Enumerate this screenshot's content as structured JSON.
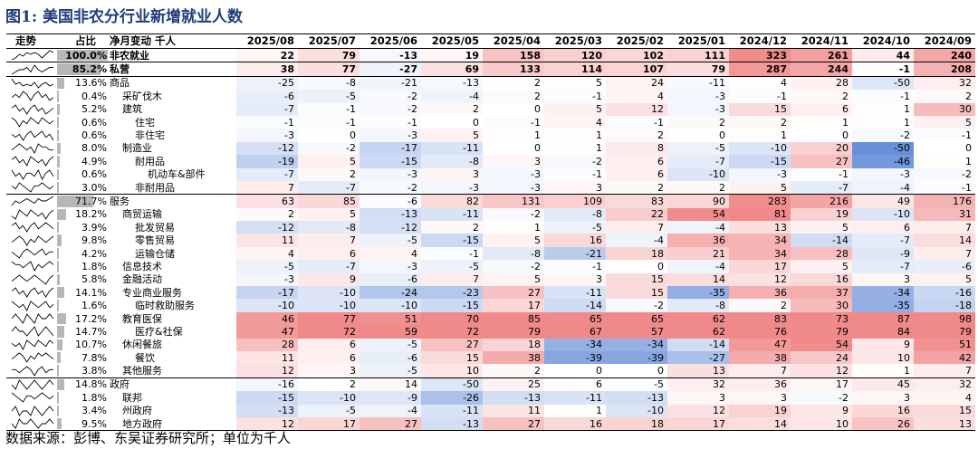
{
  "title": "图1: 美国非农分行业新增就业人数",
  "source": "数据来源：彭博、东吴证券研究所；单位为千人",
  "headers": {
    "trend": "走势",
    "share": "占比",
    "name": "净月变动 千人",
    "dates": [
      "2025/08",
      "2025/07",
      "2025/06",
      "2025/05",
      "2025/04",
      "2025/03",
      "2025/02",
      "2025/01",
      "2024/12",
      "2024/11",
      "2024/10",
      "2024/09"
    ]
  },
  "colors": {
    "pos_max": "#f08a8a",
    "neg_max": "#5b86d6",
    "neutral": "#ffffff",
    "share_bar": "#b7b7b7"
  },
  "rows": [
    {
      "name": "非农就业",
      "share": "100.0%",
      "share_value": 100.0,
      "level": 0,
      "values": [
        22,
        79,
        -13,
        19,
        158,
        120,
        102,
        111,
        323,
        261,
        44,
        240
      ],
      "trend": [
        15,
        14,
        12,
        13,
        11,
        12,
        11,
        12,
        14,
        12,
        10,
        11
      ]
    },
    {
      "name": "私营",
      "share": "85.2%",
      "share_value": 85.2,
      "level": 0,
      "values": [
        38,
        77,
        -27,
        69,
        133,
        114,
        107,
        79,
        287,
        244,
        -1,
        208
      ],
      "trend": [
        14,
        13,
        12,
        12,
        11,
        13,
        10,
        12,
        13,
        12,
        11,
        11
      ]
    },
    {
      "name": "商品",
      "share": "13.6%",
      "share_value": 13.6,
      "level": 1,
      "values": [
        -25,
        -8,
        -21,
        -13,
        2,
        5,
        24,
        -11,
        4,
        28,
        -50,
        32
      ],
      "trend": [
        9,
        12,
        11,
        13,
        12,
        13,
        11,
        14,
        12,
        11,
        13,
        12
      ]
    },
    {
      "name": "采矿伐木",
      "share": "0.4%",
      "share_value": 0.4,
      "level": 2,
      "values": [
        -6,
        -5,
        -2,
        -4,
        2,
        -1,
        4,
        -3,
        -1,
        2,
        -1,
        2
      ],
      "trend": [
        13,
        12,
        13,
        11,
        12,
        14,
        12,
        11,
        13,
        12,
        14,
        13
      ]
    },
    {
      "name": "建筑",
      "share": "5.2%",
      "share_value": 5.2,
      "level": 2,
      "values": [
        -7,
        -1,
        -2,
        2,
        0,
        5,
        12,
        -3,
        15,
        6,
        1,
        30
      ],
      "trend": [
        12,
        11,
        13,
        12,
        14,
        12,
        11,
        13,
        12,
        14,
        13,
        12
      ]
    },
    {
      "name": "住宅",
      "share": "0.6%",
      "share_value": 0.6,
      "level": 3,
      "values": [
        -1,
        -1,
        -1,
        0,
        -1,
        4,
        -1,
        2,
        2,
        1,
        1,
        5
      ],
      "trend": [
        11,
        12,
        14,
        12,
        13,
        11,
        12,
        13,
        11,
        12,
        13,
        12
      ]
    },
    {
      "name": "非住宅",
      "share": "0.6%",
      "share_value": 0.6,
      "level": 3,
      "values": [
        -3,
        0,
        -3,
        5,
        1,
        1,
        2,
        0,
        1,
        0,
        -2,
        -1
      ],
      "trend": [
        12,
        13,
        12,
        14,
        12,
        11,
        13,
        12,
        11,
        13,
        12,
        14
      ]
    },
    {
      "name": "制造业",
      "share": "8.0%",
      "share_value": 8.0,
      "level": 2,
      "values": [
        -12,
        -2,
        -17,
        -11,
        0,
        1,
        8,
        -5,
        -10,
        20,
        -50,
        0
      ],
      "trend": [
        13,
        12,
        11,
        12,
        13,
        12,
        14,
        11,
        12,
        12,
        13,
        13
      ]
    },
    {
      "name": "耐用品",
      "share": "4.9%",
      "share_value": 4.9,
      "level": 3,
      "values": [
        -19,
        5,
        -15,
        -8,
        3,
        -2,
        6,
        -7,
        -15,
        27,
        -46,
        1
      ],
      "trend": [
        12,
        11,
        13,
        12,
        14,
        11,
        12,
        13,
        12,
        14,
        12,
        11
      ]
    },
    {
      "name": "机动车&部件",
      "share": "0.6%",
      "share_value": 0.6,
      "level": 4,
      "values": [
        -7,
        2,
        -3,
        3,
        -3,
        -1,
        6,
        -10,
        -3,
        -1,
        -3,
        -2
      ],
      "trend": [
        11,
        13,
        12,
        14,
        12,
        12,
        13,
        11,
        14,
        12,
        11,
        13
      ]
    },
    {
      "name": "非耐用品",
      "share": "3.0%",
      "share_value": 3.0,
      "level": 3,
      "values": [
        7,
        -7,
        -2,
        -3,
        -3,
        3,
        2,
        2,
        5,
        -7,
        -4,
        -1
      ],
      "trend": [
        12,
        13,
        11,
        12,
        13,
        14,
        12,
        12,
        11,
        12,
        13,
        12
      ]
    },
    {
      "name": "服务",
      "share": "71.7%",
      "share_value": 71.7,
      "level": 1,
      "values": [
        63,
        85,
        -6,
        82,
        131,
        109,
        83,
        90,
        283,
        216,
        49,
        176
      ],
      "trend": [
        14,
        12,
        13,
        12,
        11,
        12,
        13,
        11,
        12,
        12,
        11,
        10
      ]
    },
    {
      "name": "商贸运输",
      "share": "18.2%",
      "share_value": 18.2,
      "level": 2,
      "values": [
        2,
        5,
        -13,
        -11,
        -2,
        -8,
        22,
        54,
        81,
        19,
        -10,
        31
      ],
      "trend": [
        13,
        14,
        11,
        12,
        13,
        11,
        12,
        13,
        12,
        14,
        12,
        11
      ]
    },
    {
      "name": "批发贸易",
      "share": "3.9%",
      "share_value": 3.9,
      "level": 3,
      "values": [
        -12,
        -8,
        -12,
        2,
        1,
        -5,
        7,
        -4,
        13,
        5,
        6,
        7
      ],
      "trend": [
        12,
        11,
        13,
        12,
        14,
        12,
        11,
        13,
        12,
        11,
        12,
        13
      ]
    },
    {
      "name": "零售贸易",
      "share": "9.8%",
      "share_value": 9.8,
      "level": 3,
      "values": [
        11,
        7,
        -5,
        -15,
        5,
        16,
        -4,
        36,
        34,
        -14,
        -7,
        14
      ],
      "trend": [
        13,
        12,
        11,
        12,
        14,
        12,
        13,
        11,
        12,
        13,
        12,
        11
      ]
    },
    {
      "name": "运输仓储",
      "share": "4.2%",
      "share_value": 4.2,
      "level": 3,
      "values": [
        4,
        6,
        4,
        -1,
        -8,
        -21,
        18,
        21,
        34,
        28,
        -9,
        7
      ],
      "trend": [
        12,
        13,
        14,
        12,
        11,
        12,
        13,
        12,
        11,
        13,
        12,
        12
      ]
    },
    {
      "name": "信息技术",
      "share": "1.8%",
      "share_value": 1.8,
      "level": 2,
      "values": [
        -5,
        -7,
        -3,
        -5,
        -2,
        -1,
        0,
        -4,
        17,
        5,
        -7,
        -6
      ],
      "trend": [
        11,
        12,
        12,
        13,
        12,
        11,
        14,
        12,
        13,
        12,
        11,
        12
      ]
    },
    {
      "name": "金融活动",
      "share": "5.8%",
      "share_value": 5.8,
      "level": 2,
      "values": [
        -3,
        9,
        -6,
        7,
        5,
        3,
        15,
        14,
        12,
        16,
        3,
        5
      ],
      "trend": [
        13,
        12,
        11,
        12,
        13,
        12,
        11,
        12,
        13,
        14,
        12,
        11
      ]
    },
    {
      "name": "专业商业服务",
      "share": "14.1%",
      "share_value": 14.1,
      "level": 2,
      "values": [
        -17,
        -10,
        -24,
        -23,
        27,
        -11,
        15,
        -35,
        36,
        37,
        -34,
        -16
      ],
      "trend": [
        12,
        11,
        13,
        12,
        14,
        12,
        11,
        13,
        12,
        14,
        12,
        11
      ]
    },
    {
      "name": "临时救助服务",
      "share": "1.6%",
      "share_value": 1.6,
      "level": 3,
      "values": [
        -10,
        -10,
        -10,
        -15,
        17,
        -14,
        -2,
        -8,
        2,
        30,
        -35,
        -18
      ],
      "trend": [
        11,
        12,
        13,
        12,
        14,
        11,
        12,
        13,
        12,
        11,
        13,
        12
      ]
    },
    {
      "name": "教育医保",
      "share": "17.2%",
      "share_value": 17.2,
      "level": 2,
      "values": [
        46,
        77,
        51,
        70,
        85,
        65,
        65,
        62,
        83,
        73,
        87,
        98
      ],
      "trend": [
        12,
        11,
        12,
        13,
        11,
        12,
        13,
        11,
        12,
        12,
        11,
        12
      ]
    },
    {
      "name": "医疗&社保",
      "share": "14.7%",
      "share_value": 14.7,
      "level": 3,
      "values": [
        47,
        72,
        59,
        72,
        79,
        67,
        57,
        62,
        76,
        79,
        84,
        79
      ],
      "trend": [
        12,
        11,
        12,
        12,
        13,
        12,
        11,
        13,
        12,
        11,
        12,
        13
      ]
    },
    {
      "name": "休闲餐旅",
      "share": "10.7%",
      "share_value": 10.7,
      "level": 2,
      "values": [
        28,
        6,
        -5,
        27,
        18,
        -34,
        -34,
        -14,
        47,
        54,
        9,
        51
      ],
      "trend": [
        12,
        13,
        12,
        14,
        11,
        12,
        13,
        11,
        12,
        13,
        11,
        12
      ]
    },
    {
      "name": "餐饮",
      "share": "7.8%",
      "share_value": 7.8,
      "level": 3,
      "values": [
        11,
        6,
        -6,
        15,
        38,
        -39,
        -39,
        -27,
        38,
        24,
        10,
        42
      ],
      "trend": [
        13,
        12,
        11,
        12,
        14,
        12,
        13,
        11,
        12,
        11,
        12,
        13
      ]
    },
    {
      "name": "其他服务",
      "share": "3.8%",
      "share_value": 3.8,
      "level": 2,
      "values": [
        12,
        3,
        -5,
        10,
        2,
        0,
        0,
        13,
        7,
        12,
        1,
        7
      ],
      "trend": [
        12,
        12,
        13,
        12,
        11,
        12,
        14,
        12,
        11,
        13,
        12,
        12
      ]
    },
    {
      "name": "政府",
      "share": "14.8%",
      "share_value": 14.8,
      "level": 1,
      "values": [
        -16,
        2,
        14,
        -50,
        25,
        6,
        -5,
        32,
        36,
        17,
        45,
        32
      ],
      "trend": [
        12,
        13,
        11,
        12,
        13,
        12,
        11,
        12,
        13,
        12,
        11,
        12
      ]
    },
    {
      "name": "联邦",
      "share": "1.8%",
      "share_value": 1.8,
      "level": 2,
      "values": [
        -15,
        -10,
        -9,
        -26,
        -13,
        -11,
        -13,
        3,
        3,
        -2,
        3,
        4
      ],
      "trend": [
        11,
        12,
        13,
        14,
        12,
        12,
        13,
        12,
        11,
        12,
        13,
        12
      ]
    },
    {
      "name": "州政府",
      "share": "3.4%",
      "share_value": 3.4,
      "level": 2,
      "values": [
        -13,
        -5,
        -4,
        -11,
        11,
        1,
        -10,
        12,
        19,
        9,
        16,
        15
      ],
      "trend": [
        12,
        11,
        13,
        12,
        12,
        13,
        11,
        12,
        13,
        12,
        11,
        12
      ]
    },
    {
      "name": "地方政府",
      "share": "9.5%",
      "share_value": 9.5,
      "level": 2,
      "values": [
        12,
        17,
        27,
        -13,
        27,
        16,
        18,
        17,
        14,
        10,
        26,
        13
      ],
      "trend": [
        12,
        13,
        11,
        12,
        12,
        11,
        12,
        13,
        12,
        12,
        11,
        12
      ]
    }
  ]
}
